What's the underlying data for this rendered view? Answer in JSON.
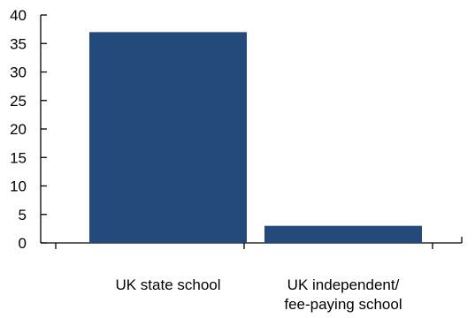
{
  "chart_data": {
    "type": "bar",
    "categories": [
      [
        "UK state school"
      ],
      [
        "UK independent/",
        "fee-paying school"
      ]
    ],
    "values": [
      37,
      3
    ],
    "title": "",
    "xlabel": "",
    "ylabel": "",
    "ylim": [
      0,
      40
    ],
    "yticks": [
      0,
      5,
      10,
      15,
      20,
      25,
      30,
      35,
      40
    ],
    "grid": false,
    "legend": "none",
    "colors": {
      "bar": "#234a7a",
      "axis": "#000000"
    }
  }
}
